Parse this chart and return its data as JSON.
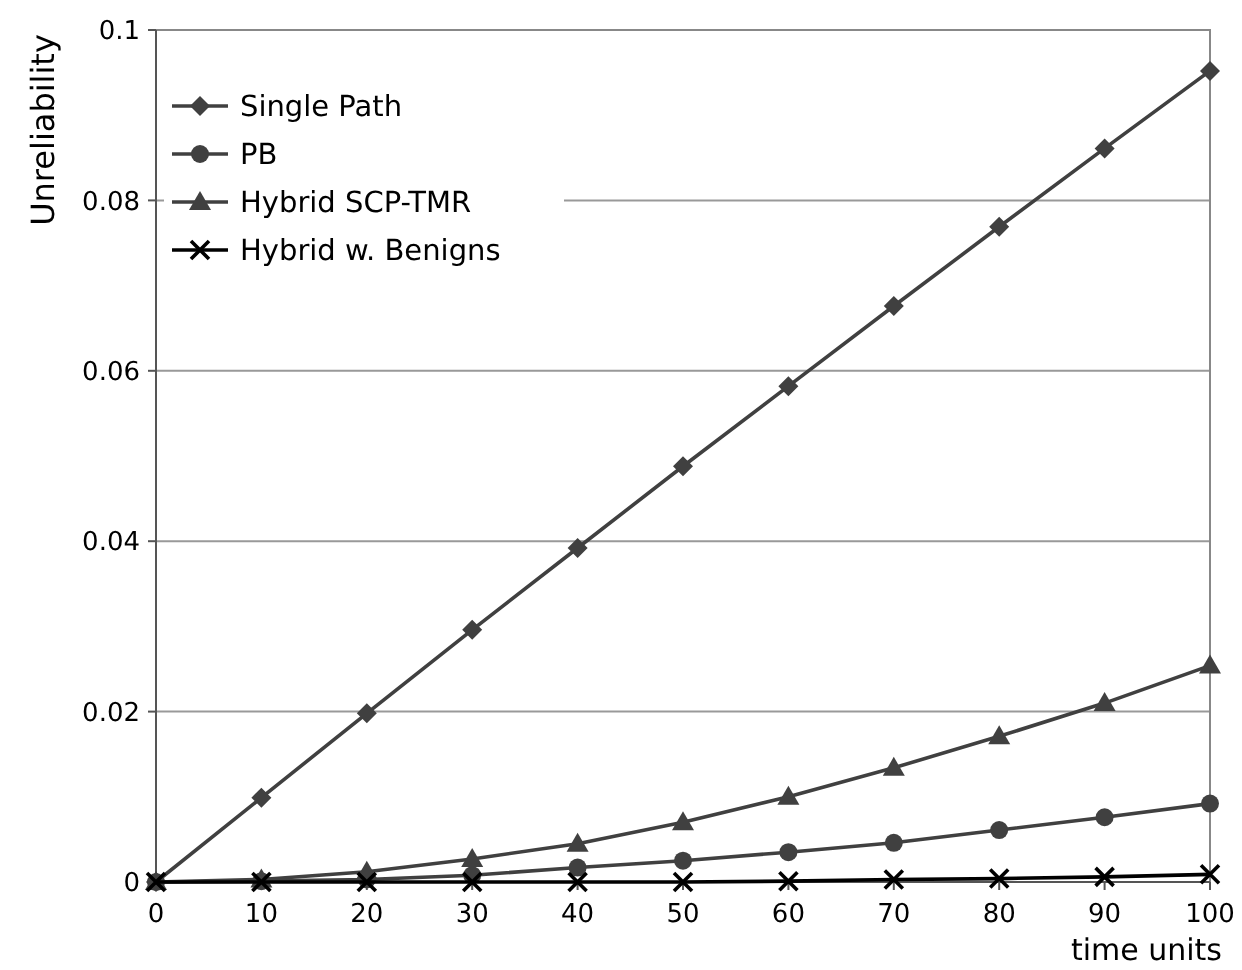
{
  "chart_data": {
    "type": "line",
    "xlabel": "time units",
    "ylabel": "Unreliability",
    "x": [
      0,
      10,
      20,
      30,
      40,
      50,
      60,
      70,
      80,
      90,
      100
    ],
    "xlim": [
      0,
      100
    ],
    "xticks": [
      0,
      10,
      20,
      30,
      40,
      50,
      60,
      70,
      80,
      90,
      100
    ],
    "ylim": [
      0,
      0.1
    ],
    "yticks": [
      0,
      0.02,
      0.04,
      0.06,
      0.08,
      0.1
    ],
    "grid": "y",
    "legend": "top left",
    "series": [
      {
        "name": "Single Path",
        "color": "#404040",
        "marker": "diamond",
        "values": [
          0,
          0.0099,
          0.0198,
          0.0296,
          0.0392,
          0.0488,
          0.0582,
          0.0676,
          0.0769,
          0.0861,
          0.0952
        ]
      },
      {
        "name": "PB",
        "color": "#404040",
        "marker": "circle",
        "values": [
          0,
          0.0001,
          0.0003,
          0.0008,
          0.0017,
          0.0025,
          0.0035,
          0.0046,
          0.0061,
          0.0076,
          0.0092
        ]
      },
      {
        "name": "Hybrid SCP-TMR",
        "color": "#404040",
        "marker": "triangle",
        "values": [
          0,
          0.0003,
          0.0012,
          0.0027,
          0.0045,
          0.007,
          0.01,
          0.0134,
          0.0171,
          0.021,
          0.0254
        ]
      },
      {
        "name": "Hybrid w. Benigns",
        "color": "#000000",
        "marker": "cross",
        "values": [
          0,
          0,
          0,
          0,
          0,
          0,
          0.0001,
          0.0003,
          0.0004,
          0.0006,
          0.0009
        ]
      }
    ]
  }
}
